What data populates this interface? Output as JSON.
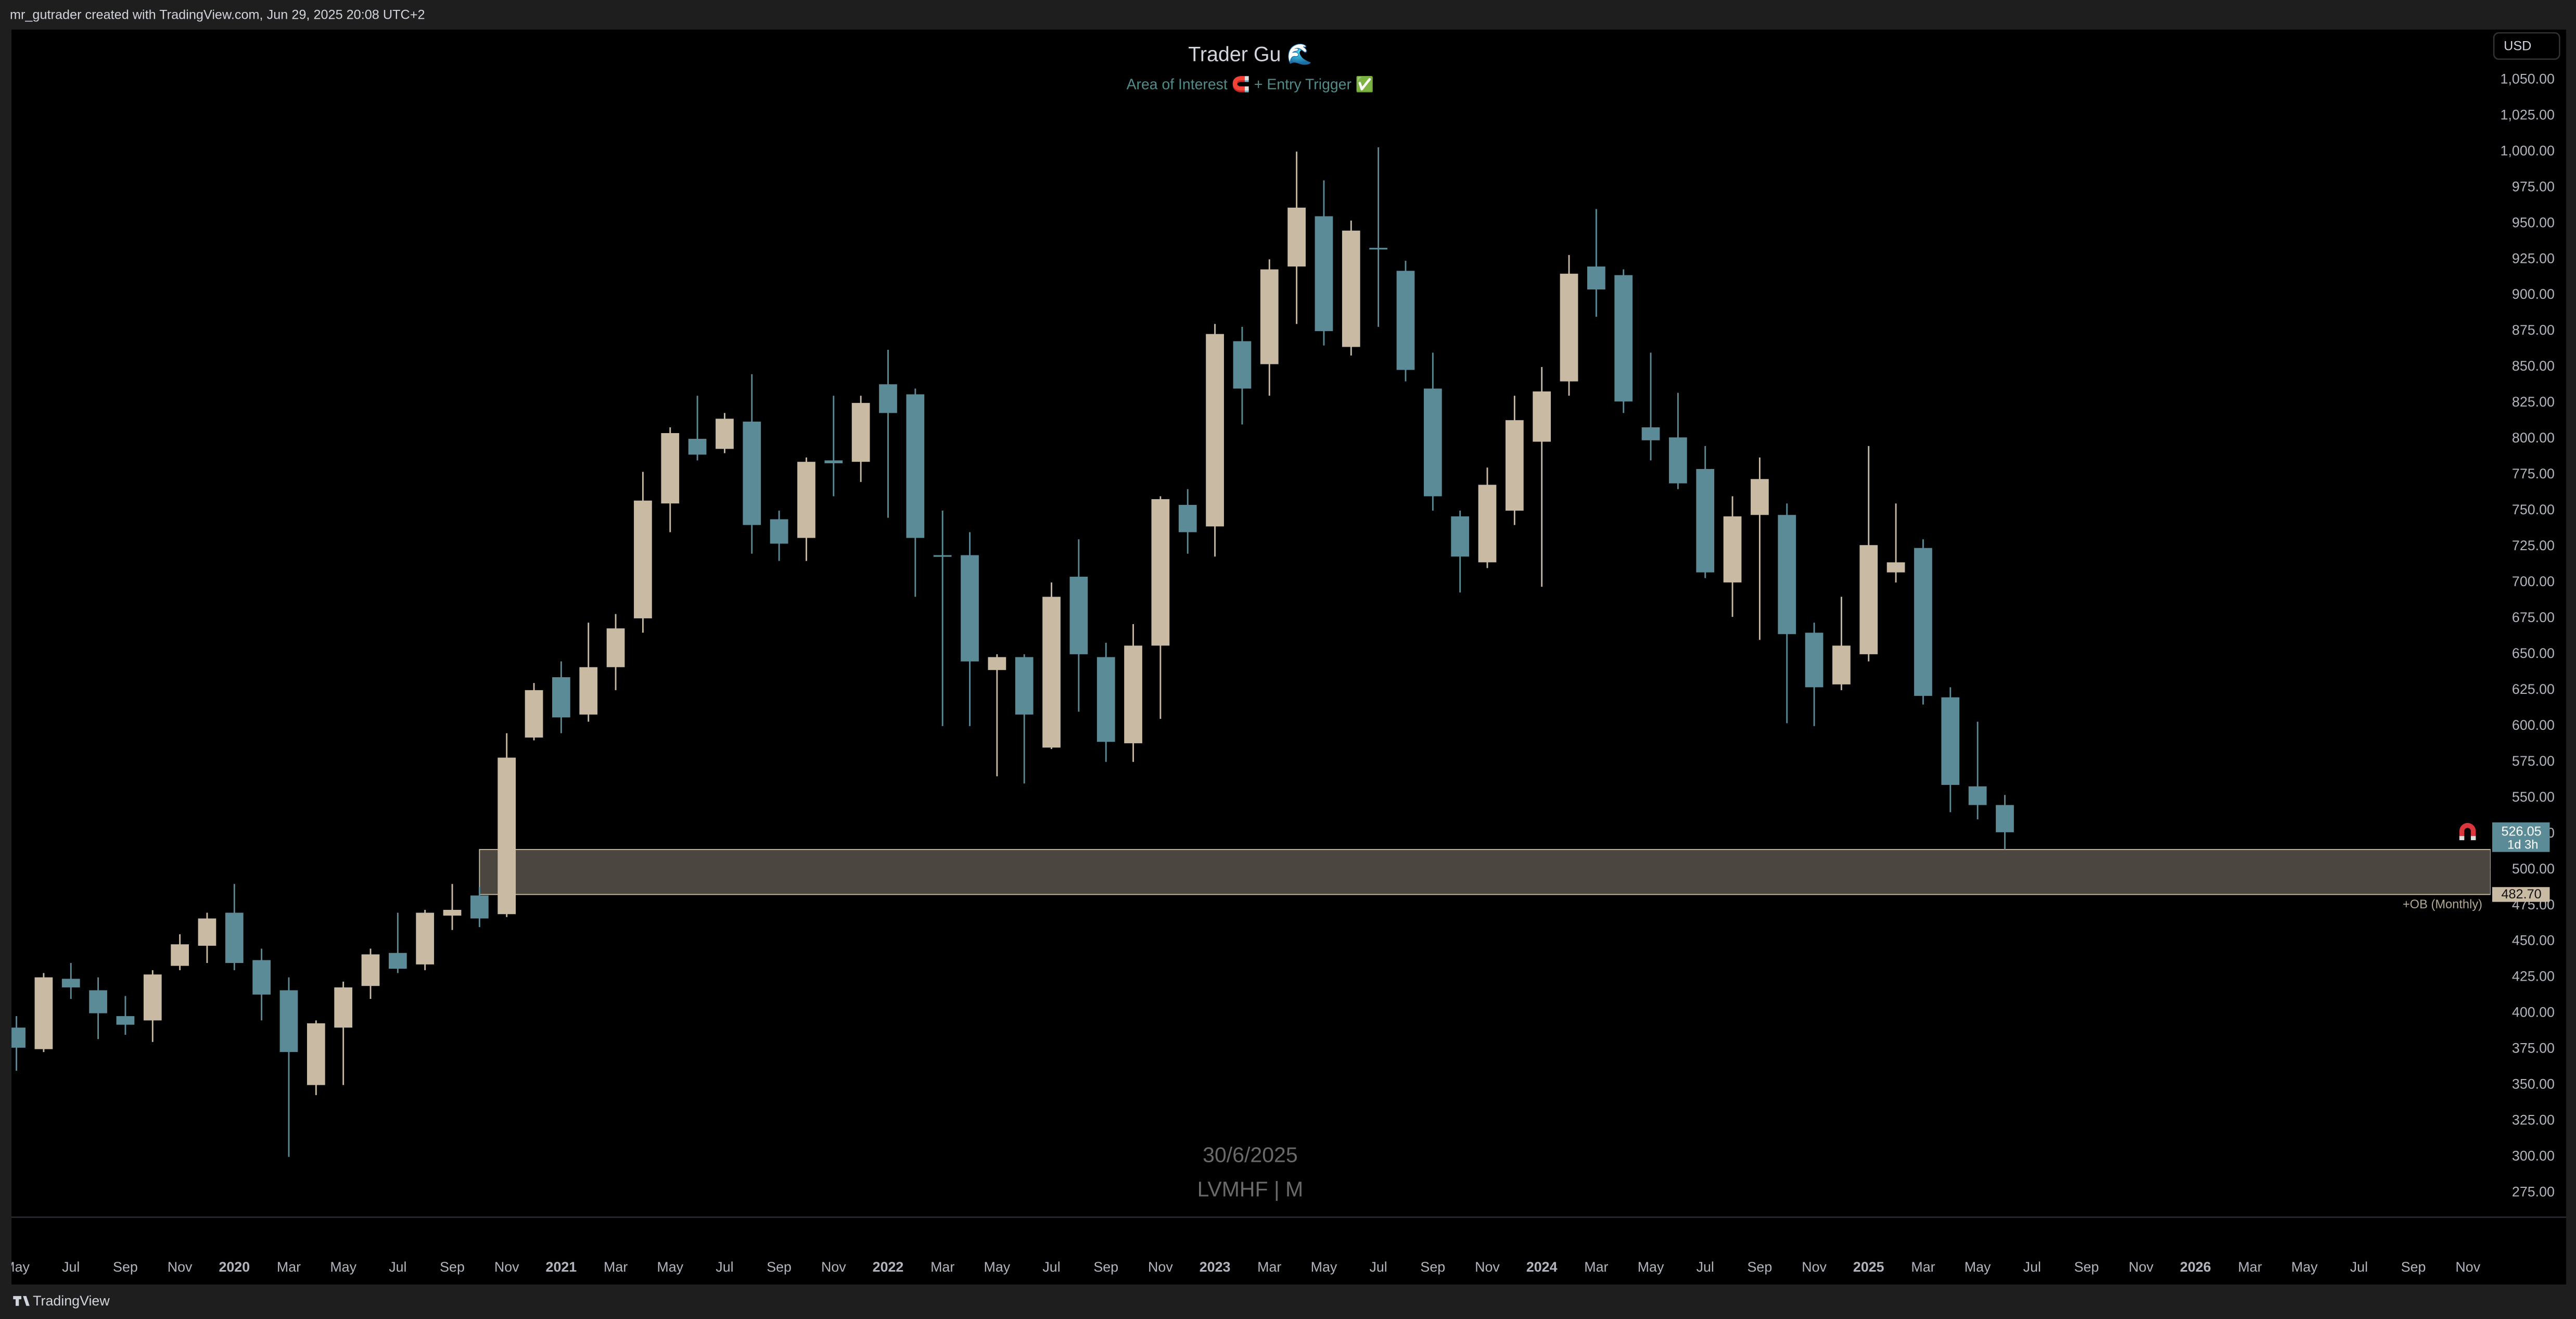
{
  "header": {
    "credit": "mr_gutrader created with TradingView.com, Jun 29, 2025 20:08 UTC+2",
    "brand": "TradingView",
    "currency": "USD"
  },
  "watermark": [
    "30/6/2025",
    "LVMHF | M"
  ],
  "chart_data": {
    "type": "candlestick",
    "title": "Trader Gu 🌊",
    "subtitle": "Area of Interest 🧲 + Entry Trigger ✅",
    "categories": [
      "May",
      null,
      "Jul",
      null,
      "Sep",
      null,
      "Nov",
      null,
      "2020",
      null,
      "Mar",
      null,
      "May",
      null,
      "Jul",
      null,
      "Sep",
      null,
      "Nov",
      null,
      "2021",
      null,
      "Mar",
      null,
      "May",
      null,
      "Jul",
      null,
      "Sep",
      null,
      "Nov",
      null,
      "2022",
      null,
      "Mar",
      null,
      "May",
      null,
      "Jul",
      null,
      "Sep",
      null,
      "Nov",
      null,
      "2023",
      null,
      "Mar",
      null,
      "May",
      null,
      "Jul",
      null,
      "Sep",
      null,
      "Nov",
      null,
      "2024",
      null,
      "Mar",
      null,
      "May",
      null,
      "Jul",
      null,
      "Sep",
      null,
      "Nov",
      null,
      "2025",
      null,
      "Mar",
      null,
      "May",
      null,
      "Jul",
      null,
      "Sep",
      null,
      "Nov",
      null,
      "2026",
      null,
      "Mar",
      null,
      "May",
      null,
      "Jul",
      null,
      "Sep",
      null,
      "Nov"
    ],
    "open": [
      390,
      375,
      424,
      416,
      398,
      395,
      433,
      447,
      470,
      437,
      416,
      350,
      390,
      419,
      442,
      434,
      468,
      482,
      469,
      592,
      634,
      608,
      641,
      675,
      755,
      800,
      793,
      812,
      744,
      731,
      785,
      784,
      838,
      831,
      719,
      719,
      639,
      648,
      585,
      704,
      648,
      588,
      656,
      754,
      739,
      868,
      852,
      920,
      955,
      864,
      933,
      917,
      835,
      746,
      714,
      750,
      798,
      840,
      920,
      914,
      808,
      801,
      779,
      700,
      747,
      747,
      665,
      629,
      650,
      707,
      724,
      620,
      558,
      545,
      null,
      null,
      null,
      null,
      null,
      null,
      null,
      null,
      null,
      null,
      null,
      null,
      null,
      null,
      null,
      null,
      null
    ],
    "high": [
      398,
      428,
      435,
      425,
      412,
      430,
      455,
      470,
      490,
      445,
      425,
      395,
      422,
      445,
      470,
      472,
      490,
      488,
      595,
      630,
      645,
      672,
      678,
      777,
      808,
      830,
      818,
      845,
      750,
      787,
      830,
      830,
      862,
      835,
      750,
      735,
      650,
      650,
      700,
      730,
      658,
      671,
      760,
      765,
      880,
      878,
      925,
      1000,
      980,
      952,
      1003,
      924,
      860,
      750,
      780,
      830,
      850,
      928,
      960,
      918,
      860,
      832,
      795,
      760,
      787,
      755,
      672,
      690,
      795,
      755,
      730,
      627,
      603,
      552,
      null,
      null,
      null,
      null,
      null,
      null,
      null,
      null,
      null,
      null,
      null,
      null,
      null,
      null,
      null,
      null,
      null
    ],
    "low": [
      360,
      373,
      410,
      382,
      385,
      380,
      430,
      435,
      430,
      395,
      300,
      343,
      350,
      410,
      428,
      430,
      458,
      460,
      467,
      590,
      595,
      603,
      625,
      665,
      735,
      785,
      790,
      720,
      715,
      715,
      760,
      770,
      745,
      690,
      600,
      600,
      565,
      560,
      584,
      610,
      575,
      575,
      605,
      720,
      718,
      810,
      830,
      880,
      865,
      858,
      878,
      840,
      750,
      693,
      710,
      740,
      697,
      830,
      885,
      818,
      785,
      765,
      703,
      676,
      660,
      602,
      600,
      625,
      645,
      700,
      615,
      540,
      535,
      514,
      null,
      null,
      null,
      null,
      null,
      null,
      null,
      null,
      null,
      null,
      null,
      null,
      null,
      null,
      null,
      null,
      null
    ],
    "close": [
      376,
      425,
      418,
      400,
      392,
      427,
      448,
      466,
      435,
      413,
      373,
      393,
      418,
      441,
      431,
      470,
      472,
      466,
      578,
      625,
      606,
      641,
      668,
      757,
      804,
      789,
      814,
      740,
      727,
      784,
      783,
      825,
      818,
      731,
      718,
      645,
      648,
      608,
      690,
      650,
      589,
      656,
      758,
      735,
      873,
      835,
      918,
      961,
      875,
      945,
      932,
      848,
      760,
      718,
      768,
      813,
      833,
      915,
      904,
      826,
      799,
      769,
      707,
      746,
      772,
      664,
      627,
      656,
      726,
      714,
      621,
      559,
      545,
      526.05,
      null,
      null,
      null,
      null,
      null,
      null,
      null,
      null,
      null,
      null,
      null,
      null,
      null,
      null,
      null,
      null,
      null
    ],
    "up_color": "#c9baa3",
    "down_color": "#5b8b97",
    "countdown": "1d 3h",
    "zone": {
      "label": "+OB (Monthly)",
      "start": 17,
      "high": 514,
      "low": {
        "value": 482.7,
        "label": "482.70"
      }
    },
    "ylim": [
      258,
      1085
    ],
    "yticks": [
      {
        "value": 275,
        "label": "275.00"
      },
      {
        "value": 300,
        "label": "300.00"
      },
      {
        "value": 325,
        "label": "325.00"
      },
      {
        "value": 350,
        "label": "350.00"
      },
      {
        "value": 375,
        "label": "375.00"
      },
      {
        "value": 400,
        "label": "400.00"
      },
      {
        "value": 425,
        "label": "425.00"
      },
      {
        "value": 450,
        "label": "450.00"
      },
      {
        "value": 475,
        "label": "475.00"
      },
      {
        "value": 500,
        "label": "500.00"
      },
      {
        "value": 525,
        "label": "525.00"
      },
      {
        "value": 550,
        "label": "550.00"
      },
      {
        "value": 575,
        "label": "575.00"
      },
      {
        "value": 600,
        "label": "600.00"
      },
      {
        "value": 625,
        "label": "625.00"
      },
      {
        "value": 650,
        "label": "650.00"
      },
      {
        "value": 675,
        "label": "675.00"
      },
      {
        "value": 700,
        "label": "700.00"
      },
      {
        "value": 725,
        "label": "725.00"
      },
      {
        "value": 750,
        "label": "750.00"
      },
      {
        "value": 775,
        "label": "775.00"
      },
      {
        "value": 800,
        "label": "800.00"
      },
      {
        "value": 825,
        "label": "825.00"
      },
      {
        "value": 850,
        "label": "850.00"
      },
      {
        "value": 875,
        "label": "875.00"
      },
      {
        "value": 900,
        "label": "900.00"
      },
      {
        "value": 925,
        "label": "925.00"
      },
      {
        "value": 950,
        "label": "950.00"
      },
      {
        "value": 975,
        "label": "975.00"
      },
      {
        "value": 1000,
        "label": "1,000.00"
      },
      {
        "value": 1025,
        "label": "1,025.00"
      },
      {
        "value": 1050,
        "label": "1,050.00"
      }
    ]
  }
}
